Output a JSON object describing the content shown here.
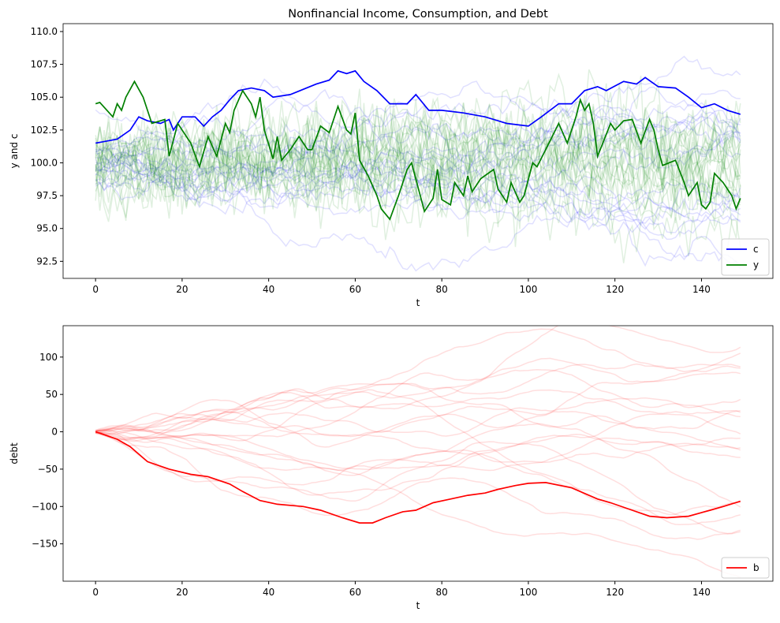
{
  "chart_data": [
    {
      "type": "line",
      "title": "Nonfinancial Income, Consumption, and Debt",
      "xlabel": "t",
      "ylabel": "y and c",
      "xlim": [
        -7.5,
        156.5
      ],
      "ylim": [
        91.2,
        110.6
      ],
      "xticks": [
        0,
        20,
        40,
        60,
        80,
        100,
        120,
        140
      ],
      "yticks": [
        92.5,
        95.0,
        97.5,
        100.0,
        102.5,
        105.0,
        107.5,
        110.0
      ],
      "grid": false,
      "legend": "lower-right",
      "series": [
        {
          "name": "c",
          "color": "#0000ff",
          "x": [
            0,
            5,
            8,
            10,
            12,
            15,
            17,
            18,
            20,
            23,
            25,
            27,
            29,
            31,
            33,
            36,
            39,
            41,
            45,
            51,
            54,
            56,
            58,
            60,
            62,
            65,
            68,
            72,
            74,
            77,
            80,
            85,
            90,
            95,
            100,
            103,
            107,
            110,
            113,
            116,
            118,
            122,
            125,
            127,
            130,
            134,
            137,
            140,
            143,
            146,
            149
          ],
          "values": [
            101.5,
            101.8,
            102.5,
            103.5,
            103.2,
            103,
            103.3,
            102.5,
            103.5,
            103.5,
            102.8,
            103.5,
            104,
            104.8,
            105.5,
            105.7,
            105.5,
            105,
            105.2,
            106,
            106.3,
            107,
            106.8,
            107,
            106.2,
            105.5,
            104.5,
            104.5,
            105.2,
            104,
            104,
            103.8,
            103.5,
            103,
            102.8,
            103.5,
            104.5,
            104.5,
            105.5,
            105.8,
            105.5,
            106.2,
            106,
            106.5,
            105.8,
            105.7,
            105,
            104.2,
            104.5,
            104,
            103.7
          ]
        },
        {
          "name": "y",
          "color": "#008000",
          "x": [
            0,
            1,
            4,
            5,
            6,
            7,
            9,
            11,
            13,
            16,
            17,
            19,
            22,
            24,
            26,
            28,
            30,
            31,
            32,
            34,
            36,
            37,
            38,
            39,
            41,
            42,
            43,
            45,
            47,
            49,
            50,
            52,
            54,
            56,
            58,
            59,
            60,
            61,
            63,
            65,
            66,
            68,
            70,
            72,
            73,
            76,
            78,
            79,
            80,
            82,
            83,
            85,
            86,
            87,
            89,
            92,
            93,
            95,
            96,
            98,
            99,
            101,
            102,
            104,
            107,
            109,
            111,
            112,
            113,
            114,
            115,
            116,
            119,
            120,
            122,
            124,
            126,
            128,
            129,
            130,
            131,
            134,
            136,
            137,
            139,
            140,
            141,
            142,
            143,
            145,
            147,
            148,
            149
          ],
          "values": [
            104.5,
            104.6,
            103.5,
            104.5,
            104,
            105,
            106.2,
            105,
            103,
            103.3,
            100.5,
            103,
            101.5,
            99.7,
            102,
            100.5,
            103,
            102.3,
            104,
            105.5,
            104.5,
            103.5,
            105,
            102.5,
            100.3,
            102,
            100.2,
            101,
            102,
            101,
            101,
            102.8,
            102.3,
            104.3,
            102.5,
            102.2,
            103.8,
            100.2,
            99,
            97.5,
            96.5,
            95.7,
            97.5,
            99.5,
            100,
            96.3,
            97.3,
            99.5,
            97.2,
            96.8,
            98.5,
            97.5,
            99,
            97.8,
            98.8,
            99.5,
            98,
            97,
            98.5,
            97,
            97.5,
            100,
            99.7,
            101,
            103,
            101.5,
            103.5,
            104.8,
            104,
            104.5,
            103,
            100.5,
            103,
            102.5,
            103.2,
            103.3,
            101.5,
            103.3,
            102.5,
            101,
            99.8,
            100.2,
            98.5,
            97.5,
            98.5,
            96.8,
            96.5,
            97,
            99.2,
            98.5,
            97.5,
            96.5,
            97.3
          ]
        }
      ]
    },
    {
      "type": "line",
      "title": "",
      "xlabel": "t",
      "ylabel": "debt",
      "xlim": [
        -7.5,
        156.5
      ],
      "ylim": [
        -200,
        142
      ],
      "xticks": [
        0,
        20,
        40,
        60,
        80,
        100,
        120,
        140
      ],
      "yticks": [
        -150,
        -100,
        -50,
        0,
        50,
        100
      ],
      "grid": false,
      "legend": "lower-right",
      "series": [
        {
          "name": "b",
          "color": "#ff0000",
          "x": [
            0,
            5,
            8,
            10,
            12,
            17,
            22,
            26,
            31,
            34,
            38,
            42,
            48,
            52,
            57,
            61,
            64,
            67,
            71,
            74,
            78,
            82,
            86,
            90,
            93,
            97,
            100,
            104,
            110,
            116,
            119,
            124,
            128,
            132,
            137,
            142,
            145,
            149
          ],
          "values": [
            0,
            -10,
            -20,
            -30,
            -40,
            -50,
            -57,
            -60,
            -70,
            -80,
            -92,
            -97,
            -100,
            -105,
            -115,
            -122,
            -122,
            -115,
            -107,
            -105,
            -95,
            -90,
            -85,
            -82,
            -77,
            -72,
            -69,
            -68,
            -75,
            -90,
            -95,
            -105,
            -113,
            -115,
            -113,
            -105,
            -100,
            -93
          ]
        }
      ]
    }
  ]
}
